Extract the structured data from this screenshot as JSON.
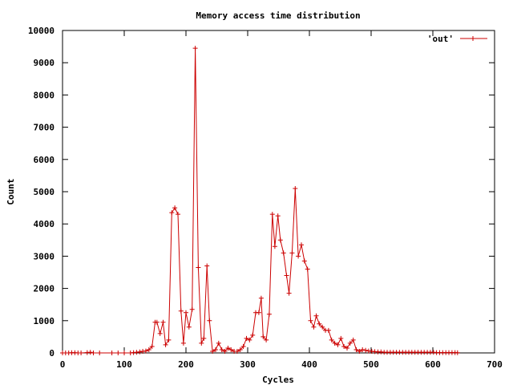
{
  "chart_data": {
    "type": "line",
    "title": "Memory access time distribution",
    "xlabel": "Cycles",
    "ylabel": "Count",
    "xlim": [
      0,
      700
    ],
    "ylim": [
      0,
      10000
    ],
    "xticks": [
      0,
      100,
      200,
      300,
      400,
      500,
      600,
      700
    ],
    "yticks": [
      0,
      1000,
      2000,
      3000,
      4000,
      5000,
      6000,
      7000,
      8000,
      9000,
      10000
    ],
    "grid": false,
    "legend_position": "top-right",
    "series": [
      {
        "name": "'out'",
        "color": "#cc0000",
        "marker": "plus",
        "points": [
          [
            0,
            0
          ],
          [
            5,
            0
          ],
          [
            10,
            0
          ],
          [
            15,
            5
          ],
          [
            20,
            5
          ],
          [
            25,
            0
          ],
          [
            30,
            0
          ],
          [
            40,
            10
          ],
          [
            45,
            20
          ],
          [
            50,
            0
          ],
          [
            60,
            0
          ],
          [
            80,
            0
          ],
          [
            90,
            0
          ],
          [
            100,
            0
          ],
          [
            110,
            0
          ],
          [
            115,
            10
          ],
          [
            120,
            20
          ],
          [
            125,
            30
          ],
          [
            130,
            50
          ],
          [
            135,
            60
          ],
          [
            140,
            100
          ],
          [
            145,
            200
          ],
          [
            150,
            950
          ],
          [
            153,
            950
          ],
          [
            158,
            600
          ],
          [
            163,
            950
          ],
          [
            167,
            250
          ],
          [
            172,
            400
          ],
          [
            177,
            4350
          ],
          [
            182,
            4500
          ],
          [
            187,
            4300
          ],
          [
            192,
            1300
          ],
          [
            196,
            300
          ],
          [
            200,
            1250
          ],
          [
            205,
            800
          ],
          [
            210,
            1350
          ],
          [
            215,
            9450
          ],
          [
            220,
            2650
          ],
          [
            225,
            300
          ],
          [
            229,
            450
          ],
          [
            234,
            2700
          ],
          [
            238,
            1000
          ],
          [
            243,
            50
          ],
          [
            248,
            100
          ],
          [
            253,
            300
          ],
          [
            258,
            100
          ],
          [
            263,
            50
          ],
          [
            268,
            150
          ],
          [
            273,
            100
          ],
          [
            278,
            50
          ],
          [
            283,
            50
          ],
          [
            288,
            100
          ],
          [
            293,
            200
          ],
          [
            298,
            450
          ],
          [
            303,
            400
          ],
          [
            308,
            550
          ],
          [
            313,
            1250
          ],
          [
            318,
            1250
          ],
          [
            322,
            1700
          ],
          [
            325,
            500
          ],
          [
            330,
            400
          ],
          [
            335,
            1200
          ],
          [
            340,
            4300
          ],
          [
            344,
            3300
          ],
          [
            349,
            4250
          ],
          [
            353,
            3500
          ],
          [
            358,
            3100
          ],
          [
            363,
            2400
          ],
          [
            367,
            1850
          ],
          [
            372,
            3100
          ],
          [
            377,
            5100
          ],
          [
            382,
            3000
          ],
          [
            387,
            3350
          ],
          [
            392,
            2850
          ],
          [
            397,
            2600
          ],
          [
            402,
            1000
          ],
          [
            407,
            800
          ],
          [
            411,
            1150
          ],
          [
            416,
            900
          ],
          [
            421,
            800
          ],
          [
            426,
            700
          ],
          [
            431,
            700
          ],
          [
            436,
            400
          ],
          [
            441,
            300
          ],
          [
            446,
            250
          ],
          [
            451,
            450
          ],
          [
            456,
            200
          ],
          [
            461,
            150
          ],
          [
            466,
            300
          ],
          [
            471,
            400
          ],
          [
            476,
            100
          ],
          [
            481,
            50
          ],
          [
            486,
            100
          ],
          [
            491,
            80
          ],
          [
            496,
            60
          ],
          [
            501,
            50
          ],
          [
            506,
            40
          ],
          [
            511,
            30
          ],
          [
            516,
            30
          ],
          [
            521,
            20
          ],
          [
            526,
            20
          ],
          [
            531,
            20
          ],
          [
            536,
            20
          ],
          [
            541,
            20
          ],
          [
            546,
            20
          ],
          [
            551,
            20
          ],
          [
            556,
            20
          ],
          [
            561,
            20
          ],
          [
            566,
            20
          ],
          [
            571,
            20
          ],
          [
            576,
            20
          ],
          [
            581,
            20
          ],
          [
            586,
            20
          ],
          [
            591,
            20
          ],
          [
            596,
            20
          ],
          [
            601,
            20
          ],
          [
            606,
            10
          ],
          [
            611,
            10
          ],
          [
            616,
            10
          ],
          [
            621,
            10
          ],
          [
            626,
            10
          ],
          [
            631,
            10
          ],
          [
            636,
            10
          ],
          [
            640,
            5
          ]
        ]
      }
    ]
  }
}
